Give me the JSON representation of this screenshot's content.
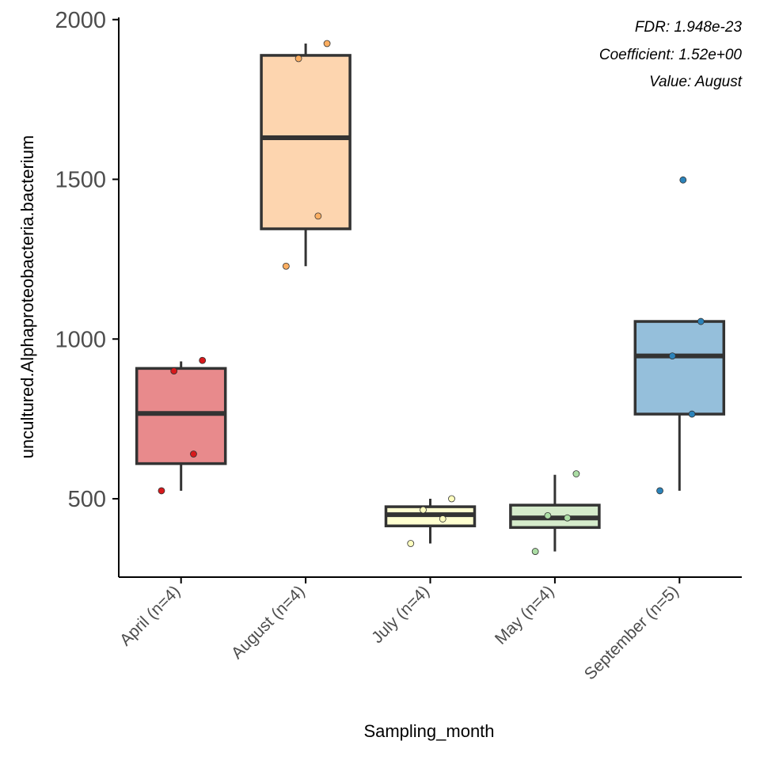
{
  "chart_data": {
    "type": "box",
    "xlabel": "Sampling_month",
    "ylabel": "uncultured.Alphaproteobacteria.bacterium",
    "ylim": [
      250,
      2000
    ],
    "yticks": [
      500,
      1000,
      1500,
      2000
    ],
    "grid": false,
    "legend": "none",
    "annotations": [
      "FDR: 1.948e-23",
      "Coefficient: 1.52e+00",
      "Value: August"
    ],
    "categories": [
      "April (n=4)",
      "August (n=4)",
      "July (n=4)",
      "May (n=4)",
      "September (n=5)"
    ],
    "groups": [
      {
        "label": "April (n=4)",
        "color": "#E88A8C",
        "point_color": "#D7191C",
        "q1": 610,
        "median": 767,
        "q3": 908,
        "whisker_low": 525,
        "whisker_high": 930,
        "points": [
          525,
          640,
          900,
          933
        ]
      },
      {
        "label": "August (n=4)",
        "color": "#FDD5AF",
        "point_color": "#FDAE61",
        "q1": 1345,
        "median": 1630,
        "q3": 1888,
        "whisker_low": 1228,
        "whisker_high": 1925,
        "points": [
          1228,
          1385,
          1878,
          1925
        ]
      },
      {
        "label": "July (n=4)",
        "color": "#FFFFD0",
        "point_color": "#FFFFBF",
        "q1": 415,
        "median": 450,
        "q3": 475,
        "whisker_low": 360,
        "whisker_high": 500,
        "points": [
          360,
          437,
          465,
          500
        ]
      },
      {
        "label": "May (n=4)",
        "color": "#D5EBCB",
        "point_color": "#ABDDA4",
        "q1": 410,
        "median": 440,
        "q3": 480,
        "whisker_low": 335,
        "whisker_high": 575,
        "points": [
          335,
          440,
          447,
          578
        ]
      },
      {
        "label": "September (n=5)",
        "color": "#95BFDB",
        "point_color": "#2B83BA",
        "q1": 765,
        "median": 947,
        "q3": 1055,
        "whisker_low": 525,
        "whisker_high": 1055,
        "points": [
          525,
          765,
          947,
          1055,
          1498
        ]
      }
    ]
  }
}
